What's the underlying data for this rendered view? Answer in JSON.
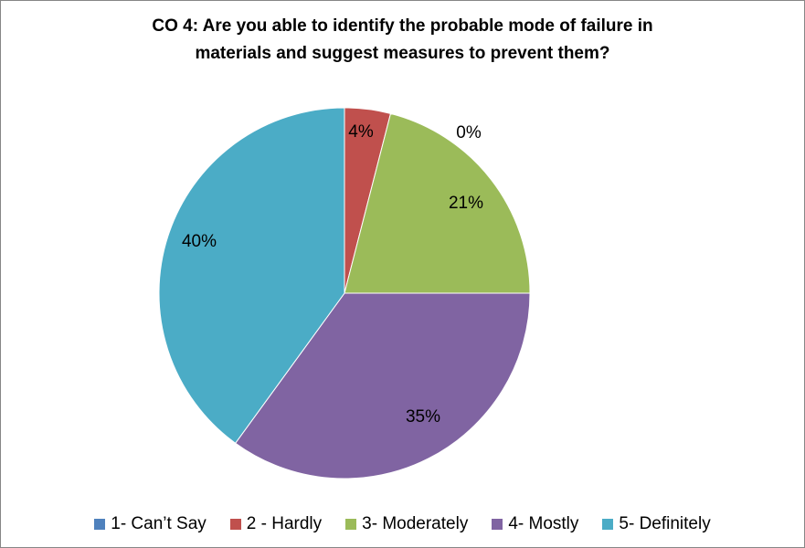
{
  "chart_data": {
    "type": "pie",
    "title_lines": [
      "CO 4:  Are you able to identify the probable mode of failure in",
      "materials and suggest measures to prevent them?"
    ],
    "categories": [
      "1- Can’t Say",
      "2 - Hardly",
      "3- Moderately",
      "4- Mostly",
      "5- Definitely"
    ],
    "values": [
      0,
      4,
      21,
      35,
      40
    ],
    "labels": [
      "",
      "4%",
      "21%",
      "35%",
      "40%"
    ],
    "extra_labels": [
      "0%"
    ],
    "colors": [
      "#4F81BD",
      "#C0504D",
      "#9BBB59",
      "#8064A2",
      "#4BACC6"
    ],
    "legend_position": "bottom"
  }
}
